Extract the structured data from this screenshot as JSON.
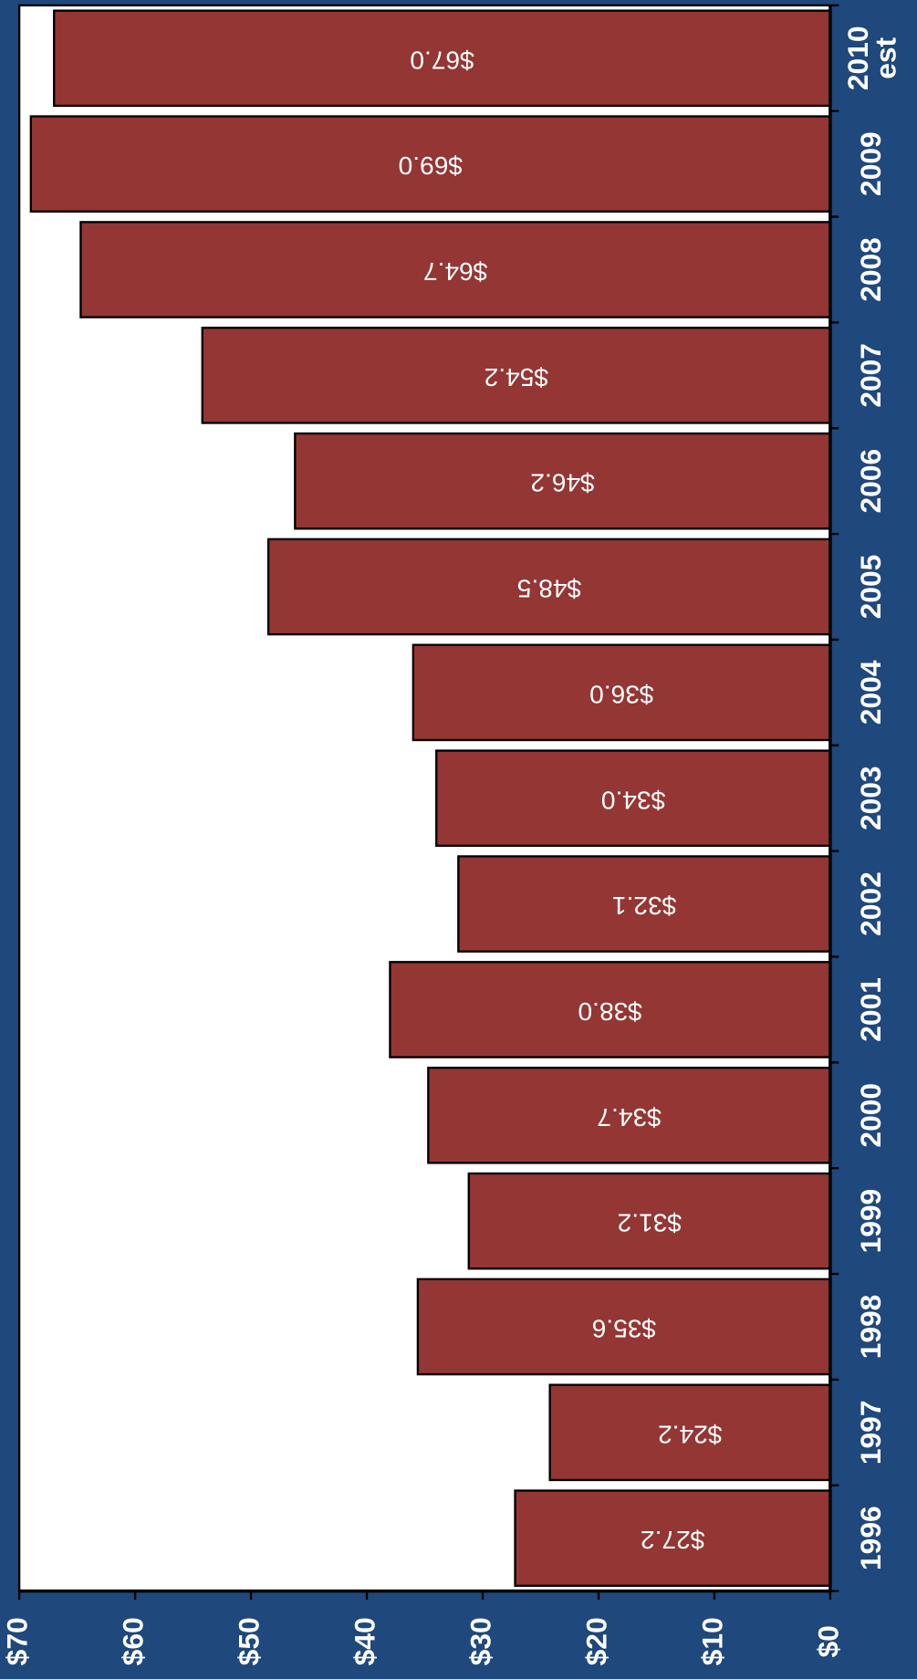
{
  "chart_data": {
    "type": "bar",
    "categories": [
      "1996",
      "1997",
      "1998",
      "1999",
      "2000",
      "2001",
      "2002",
      "2003",
      "2004",
      "2005",
      "2006",
      "2007",
      "2008",
      "2009",
      "2010 est"
    ],
    "values": [
      27.2,
      24.2,
      35.6,
      31.2,
      34.7,
      38.0,
      32.1,
      34.0,
      36.0,
      48.5,
      46.2,
      54.2,
      64.7,
      69.0,
      67.0
    ],
    "value_labels": [
      "$27.2",
      "$24.2",
      "$35.6",
      "$31.2",
      "$34.7",
      "$38.0",
      "$32.1",
      "$34.0",
      "$36.0",
      "$48.5",
      "$46.2",
      "$54.2",
      "$64.7",
      "$69.0",
      "$67.0"
    ],
    "color": "#943634",
    "ylim": [
      0,
      70
    ],
    "yticks": [
      {
        "value": 0,
        "label": "$0"
      },
      {
        "value": 10,
        "label": "$10"
      },
      {
        "value": 20,
        "label": "$20"
      },
      {
        "value": 30,
        "label": "$30"
      },
      {
        "value": 40,
        "label": "$40"
      },
      {
        "value": 50,
        "label": "$50"
      },
      {
        "value": 60,
        "label": "$60"
      },
      {
        "value": 70,
        "label": "$70"
      }
    ],
    "grid": false
  }
}
